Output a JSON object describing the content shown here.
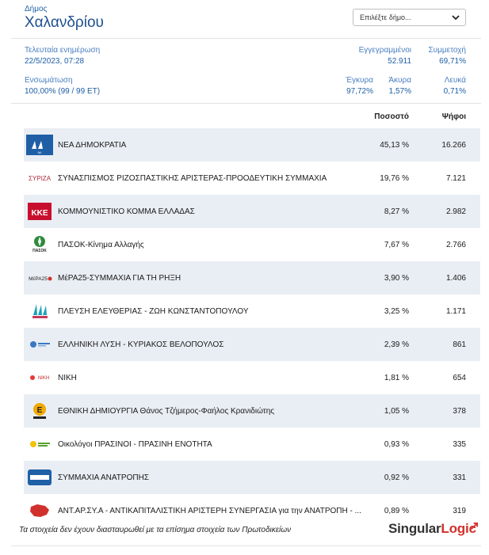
{
  "header": {
    "small": "Δήμος",
    "title": "Χαλανδρίου",
    "select_placeholder": "Επιλέξτε δήμο..."
  },
  "stats": {
    "last_update_label": "Τελευταία ενημέρωση",
    "last_update_value": "22/5/2023, 07:28",
    "registered_label": "Εγγεγραμμένοι",
    "registered_value": "52.911",
    "turnout_label": "Συμμετοχή",
    "turnout_value": "69,71%",
    "integration_label": "Ενσωμάτωση",
    "integration_value": "100,00% (99 / 99 ΕΤ)",
    "valid_label": "Έγκυρα",
    "valid_value": "97,72%",
    "invalid_label": "Άκυρα",
    "invalid_value": "1,57%",
    "blank_label": "Λευκά",
    "blank_value": "0,71%"
  },
  "table": {
    "col_percent": "Ποσοστό",
    "col_votes": "Ψήφοι",
    "rows": [
      {
        "name": "ΝΕΑ ΔΗΜΟΚΡΑΤΙΑ",
        "percent": "45,13 %",
        "votes": "16.266",
        "logo": "nd-logo",
        "logo_text": "ΝΔ"
      },
      {
        "name": "ΣΥΝΑΣΠΙΣΜΟΣ ΡΙΖΟΣΠΑΣΤΙΚΗΣ ΑΡΙΣΤΕΡΑΣ-ΠΡΟΟΔΕΥΤΙΚΗ ΣΥΜΜΑΧΙΑ",
        "percent": "19,76 %",
        "votes": "7.121",
        "logo": "syriza-logo",
        "logo_text": "ΣΥΡΙΖΑ"
      },
      {
        "name": "ΚΟΜΜΟΥΝΙΣΤΙΚΟ ΚΟΜΜΑ ΕΛΛΑΔΑΣ",
        "percent": "8,27 %",
        "votes": "2.982",
        "logo": "kke-logo",
        "logo_text": "ΚΚΕ"
      },
      {
        "name": "ΠΑΣΟΚ-Κίνημα Αλλαγής",
        "percent": "7,67 %",
        "votes": "2.766",
        "logo": "pasok-logo",
        "logo_text": "ΠΑΣΟΚ"
      },
      {
        "name": "ΜέΡΑ25-ΣΥΜΜΑΧΙΑ ΓΙΑ ΤΗ ΡΗΞΗ",
        "percent": "3,90 %",
        "votes": "1.406",
        "logo": "mera25-logo",
        "logo_text": "ΜέΡΑ25"
      },
      {
        "name": "ΠΛΕΥΣΗ ΕΛΕΥΘΕΡΙΑΣ - ΖΩΗ ΚΩΝΣΤΑΝΤΟΠΟΥΛΟΥ",
        "percent": "3,25 %",
        "votes": "1.171",
        "logo": "plefsi-logo",
        "logo_text": ""
      },
      {
        "name": "ΕΛΛΗΝΙΚΗ ΛΥΣΗ - ΚΥΡΙΑΚΟΣ ΒΕΛΟΠΟΥΛΟΣ",
        "percent": "2,39 %",
        "votes": "861",
        "logo": "elliniki-lysi-logo",
        "logo_text": ""
      },
      {
        "name": "ΝΙΚΗ",
        "percent": "1,81 %",
        "votes": "654",
        "logo": "niki-logo",
        "logo_text": "ΝΙΚΗ"
      },
      {
        "name": "ΕΘΝΙΚΗ ΔΗΜΙΟΥΡΓΙΑ Θάνος Τζήμερος-Φαήλος Κρανιδιώτης",
        "percent": "1,05 %",
        "votes": "378",
        "logo": "ethniki-dimiourgia-logo",
        "logo_text": ""
      },
      {
        "name": "Οικολόγοι ΠΡΑΣΙΝΟΙ - ΠΡΑΣΙΝΗ ΕΝΟΤΗΤΑ",
        "percent": "0,93 %",
        "votes": "335",
        "logo": "prasinoi-logo",
        "logo_text": ""
      },
      {
        "name": "ΣΥΜΜΑΧΙΑ ΑΝΑΤΡΟΠΗΣ",
        "percent": "0,92 %",
        "votes": "331",
        "logo": "anatropi-logo",
        "logo_text": ""
      },
      {
        "name": "ΑΝΤ.ΑΡ.ΣΥ.Α - ΑΝΤΙΚΑΠΙΤΑΛΙΣΤΙΚΗ ΑΡΙΣΤΕΡΗ ΣΥΝΕΡΓΑΣΙΑ για την ΑΝΑΤΡΟΠΗ - ...",
        "percent": "0,89 %",
        "votes": "319",
        "logo": "antarsya-logo",
        "logo_text": ""
      }
    ]
  },
  "footer": {
    "note": "Τα στοιχεία δεν έχουν διασταυρωθεί με τα επίσημα στοιχεία των Πρωτοδικείων",
    "brand_a": "Singular",
    "brand_b": "Logic"
  },
  "colors": {
    "accent": "#1f5fa6",
    "alt_row": "#e9eef4",
    "brand_red": "#d0312d"
  }
}
